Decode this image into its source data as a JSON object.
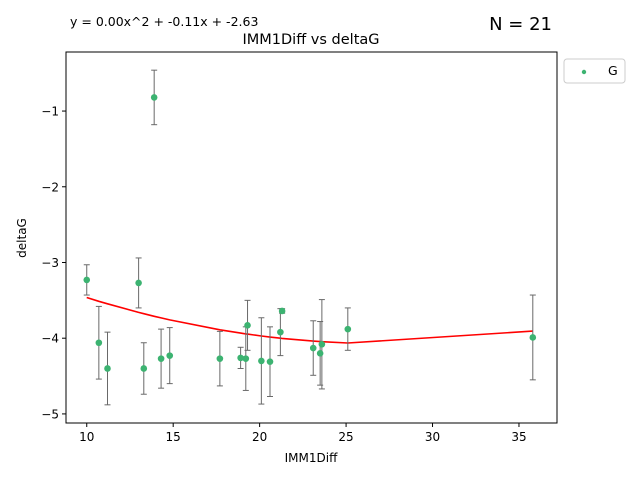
{
  "chart_data": {
    "type": "scatter",
    "title": "IMM1Diff vs deltaG",
    "xlabel": "IMM1Diff",
    "ylabel": "deltaG",
    "equation": "y = 0.00x^2 + -0.11x + -2.63",
    "n_label": "N = 21",
    "xlim": [
      8.8,
      37.2
    ],
    "ylim": [
      -5.12,
      -0.22
    ],
    "xticks": [
      10,
      15,
      20,
      25,
      30,
      35
    ],
    "yticks": [
      -5,
      -4,
      -3,
      -2,
      -1
    ],
    "xtick_labels": [
      "10",
      "15",
      "20",
      "25",
      "30",
      "35"
    ],
    "ytick_labels": [
      "−5",
      "−4",
      "−3",
      "−2",
      "−1"
    ],
    "legend": {
      "label": "G",
      "placement": "outside top-right"
    },
    "colors": {
      "points": "#3cb371",
      "fit": "#ff0000",
      "errorbars": "#696969"
    },
    "series": [
      {
        "name": "G",
        "points": [
          {
            "x": 10.0,
            "y": -3.23,
            "err": 0.2
          },
          {
            "x": 10.7,
            "y": -4.06,
            "err": 0.48
          },
          {
            "x": 11.2,
            "y": -4.4,
            "err": 0.48
          },
          {
            "x": 13.0,
            "y": -3.27,
            "err": 0.33
          },
          {
            "x": 13.3,
            "y": -4.4,
            "err": 0.34
          },
          {
            "x": 13.9,
            "y": -0.82,
            "err": 0.36
          },
          {
            "x": 14.3,
            "y": -4.27,
            "err": 0.39
          },
          {
            "x": 14.8,
            "y": -4.23,
            "err": 0.37
          },
          {
            "x": 17.7,
            "y": -4.27,
            "err": 0.36
          },
          {
            "x": 18.9,
            "y": -4.26,
            "err": 0.14
          },
          {
            "x": 19.2,
            "y": -4.27,
            "err": 0.42
          },
          {
            "x": 19.3,
            "y": -3.83,
            "err": 0.33
          },
          {
            "x": 20.1,
            "y": -4.3,
            "err": 0.57
          },
          {
            "x": 20.6,
            "y": -4.31,
            "err": 0.46
          },
          {
            "x": 21.2,
            "y": -3.92,
            "err": 0.31
          },
          {
            "x": 21.3,
            "y": -3.64,
            "err": 0.03
          },
          {
            "x": 23.1,
            "y": -4.13,
            "err": 0.36
          },
          {
            "x": 23.5,
            "y": -4.2,
            "err": 0.42
          },
          {
            "x": 23.6,
            "y": -4.08,
            "err": 0.59
          },
          {
            "x": 25.1,
            "y": -3.88,
            "err": 0.28
          },
          {
            "x": 35.8,
            "y": -3.99,
            "err": 0.56
          }
        ]
      }
    ]
  }
}
